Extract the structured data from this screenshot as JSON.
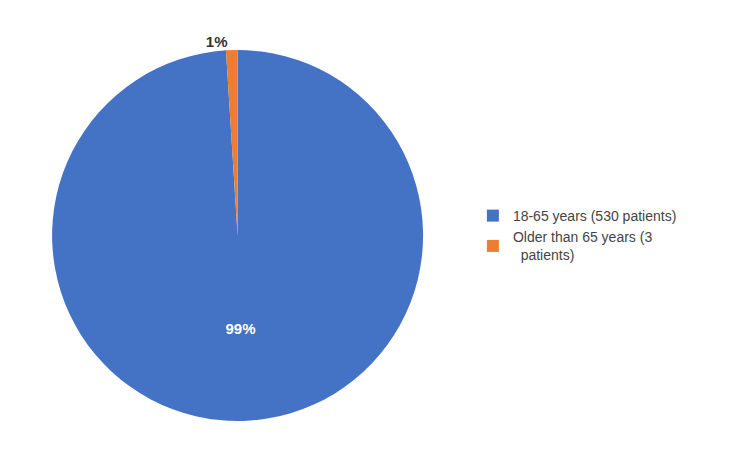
{
  "chart_data": {
    "type": "pie",
    "categories": [
      "18-65 years (530 patients)",
      "Older than 65 years (3\n  patients)"
    ],
    "values": [
      99,
      1
    ],
    "value_labels": [
      "99%",
      "1%"
    ],
    "colors": [
      "#4472C4",
      "#ED7D31"
    ],
    "data_labels": true,
    "legend": "right"
  }
}
